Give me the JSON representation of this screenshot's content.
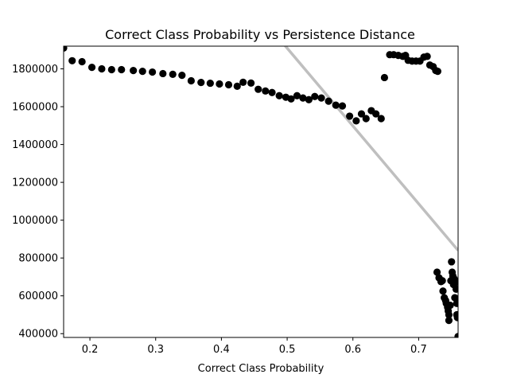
{
  "chart_data": {
    "type": "scatter",
    "title": "Correct Class Probability vs Persistence Distance",
    "xlabel": "Correct Class Probability",
    "ylabel": "",
    "xlim": [
      0.16,
      0.76
    ],
    "ylim": [
      380000,
      1920000
    ],
    "x_ticks": [
      0.2,
      0.3,
      0.4,
      0.5,
      0.6,
      0.7
    ],
    "x_tick_labels": [
      "0.2",
      "0.3",
      "0.4",
      "0.5",
      "0.6",
      "0.7"
    ],
    "y_ticks": [
      400000,
      600000,
      800000,
      1000000,
      1200000,
      1400000,
      1600000,
      1800000
    ],
    "y_tick_labels": [
      "400000",
      "600000",
      "800000",
      "1000000",
      "1200000",
      "1400000",
      "1600000",
      "1800000"
    ],
    "grid": false,
    "legend": "none",
    "point_color": "#000000",
    "line_color": "#bfbfbf",
    "trend_line": {
      "x": [
        0.495,
        0.76
      ],
      "y": [
        1930000,
        840000
      ]
    },
    "points": [
      [
        0.16,
        1910000
      ],
      [
        0.173,
        1843000
      ],
      [
        0.188,
        1838000
      ],
      [
        0.203,
        1808000
      ],
      [
        0.218,
        1800000
      ],
      [
        0.233,
        1796000
      ],
      [
        0.248,
        1796000
      ],
      [
        0.266,
        1791000
      ],
      [
        0.28,
        1787000
      ],
      [
        0.295,
        1783000
      ],
      [
        0.311,
        1775000
      ],
      [
        0.326,
        1771000
      ],
      [
        0.34,
        1766000
      ],
      [
        0.354,
        1737000
      ],
      [
        0.369,
        1728000
      ],
      [
        0.383,
        1724000
      ],
      [
        0.397,
        1720000
      ],
      [
        0.411,
        1716000
      ],
      [
        0.424,
        1708000
      ],
      [
        0.433,
        1729000
      ],
      [
        0.445,
        1725000
      ],
      [
        0.456,
        1692000
      ],
      [
        0.467,
        1683000
      ],
      [
        0.477,
        1675000
      ],
      [
        0.488,
        1658000
      ],
      [
        0.498,
        1650000
      ],
      [
        0.506,
        1641000
      ],
      [
        0.515,
        1658000
      ],
      [
        0.524,
        1646000
      ],
      [
        0.533,
        1637000
      ],
      [
        0.542,
        1654000
      ],
      [
        0.552,
        1646000
      ],
      [
        0.563,
        1629000
      ],
      [
        0.574,
        1608000
      ],
      [
        0.584,
        1604000
      ],
      [
        0.595,
        1550000
      ],
      [
        0.605,
        1525000
      ],
      [
        0.613,
        1562000
      ],
      [
        0.62,
        1537000
      ],
      [
        0.628,
        1579000
      ],
      [
        0.635,
        1562000
      ],
      [
        0.643,
        1537000
      ],
      [
        0.648,
        1754000
      ],
      [
        0.656,
        1875000
      ],
      [
        0.662,
        1875000
      ],
      [
        0.669,
        1871000
      ],
      [
        0.676,
        1866000
      ],
      [
        0.68,
        1871000
      ],
      [
        0.684,
        1845000
      ],
      [
        0.69,
        1841000
      ],
      [
        0.696,
        1841000
      ],
      [
        0.702,
        1841000
      ],
      [
        0.708,
        1862000
      ],
      [
        0.713,
        1866000
      ],
      [
        0.717,
        1820000
      ],
      [
        0.722,
        1812000
      ],
      [
        0.726,
        1791000
      ],
      [
        0.729,
        1787000
      ],
      [
        0.728,
        725000
      ],
      [
        0.731,
        695000
      ],
      [
        0.734,
        675000
      ],
      [
        0.736,
        680000
      ],
      [
        0.737,
        625000
      ],
      [
        0.739,
        590000
      ],
      [
        0.741,
        575000
      ],
      [
        0.742,
        560000
      ],
      [
        0.744,
        540000
      ],
      [
        0.745,
        520000
      ],
      [
        0.746,
        500000
      ],
      [
        0.746,
        470000
      ],
      [
        0.748,
        550000
      ],
      [
        0.749,
        680000
      ],
      [
        0.75,
        780000
      ],
      [
        0.751,
        725000
      ],
      [
        0.752,
        705000
      ],
      [
        0.753,
        660000
      ],
      [
        0.754,
        690000
      ],
      [
        0.755,
        590000
      ],
      [
        0.756,
        670000
      ],
      [
        0.757,
        635000
      ],
      [
        0.758,
        560000
      ],
      [
        0.758,
        500000
      ],
      [
        0.759,
        485000
      ],
      [
        0.76,
        385000
      ]
    ]
  }
}
